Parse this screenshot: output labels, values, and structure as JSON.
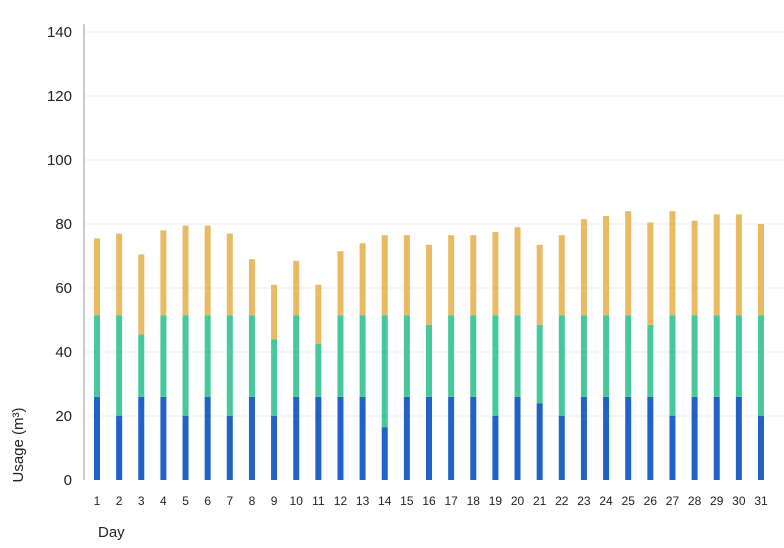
{
  "chart_data": {
    "type": "bar",
    "stacked": true,
    "xlabel": "Day",
    "ylabel": "Usage (m³)",
    "ylim": [
      0,
      140
    ],
    "yticks": [
      0,
      20,
      40,
      60,
      80,
      100,
      120,
      140
    ],
    "grid": true,
    "legend": "none",
    "categories": [
      "1",
      "2",
      "3",
      "4",
      "5",
      "6",
      "7",
      "8",
      "9",
      "10",
      "11",
      "12",
      "13",
      "14",
      "15",
      "16",
      "17",
      "18",
      "19",
      "20",
      "21",
      "22",
      "23",
      "24",
      "25",
      "26",
      "27",
      "28",
      "29",
      "30",
      "31"
    ],
    "series": [
      {
        "color": "#1f63c6",
        "values": [
          26,
          20,
          26,
          26,
          20,
          26,
          20,
          26,
          20,
          26,
          26,
          26,
          26,
          16.5,
          26,
          26,
          26,
          26,
          20,
          26,
          24,
          20,
          26,
          26,
          26,
          26,
          20,
          26,
          26,
          26,
          20
        ]
      },
      {
        "color": "#46c99a",
        "values": [
          25.5,
          31.5,
          19.5,
          25.5,
          31.5,
          25.5,
          31.5,
          25.5,
          24,
          25.5,
          16.5,
          25.5,
          25.5,
          35,
          25.5,
          22.5,
          25.5,
          25.5,
          31.5,
          25.5,
          24.5,
          31.5,
          25.5,
          25.5,
          25.5,
          22.5,
          31.5,
          25.5,
          25.5,
          25.5,
          31.5
        ]
      },
      {
        "color": "#e8bb63",
        "values": [
          24,
          25.5,
          25,
          26.5,
          28,
          28,
          25.5,
          17.5,
          17,
          17,
          18.5,
          20,
          22.5,
          25,
          25,
          25,
          25,
          25,
          26,
          27.5,
          25,
          25,
          30,
          31,
          32.5,
          32,
          32.5,
          29.5,
          31.5,
          31.5,
          28.5
        ]
      }
    ]
  }
}
